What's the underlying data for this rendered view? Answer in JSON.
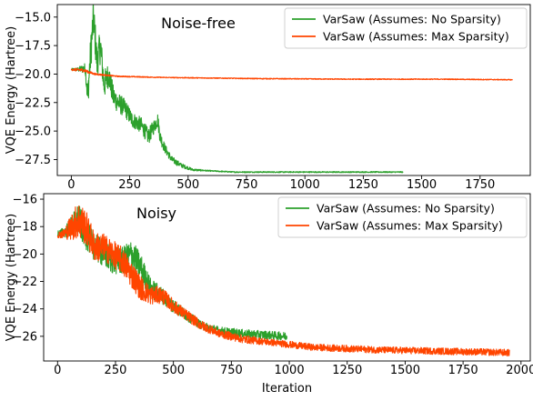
{
  "chart_data": [
    {
      "type": "line",
      "title": "Noise-free",
      "xlabel": "",
      "ylabel": "VQE Energy (Hartree)",
      "xlim": [
        -60,
        1965
      ],
      "ylim": [
        -28.9,
        -13.9
      ],
      "xticks": [
        0,
        250,
        500,
        750,
        1000,
        1250,
        1500,
        1750
      ],
      "yticks": [
        -15.0,
        -17.5,
        -20.0,
        -22.5,
        -25.0,
        -27.5
      ],
      "ytick_labels": [
        "−15.0",
        "−17.5",
        "−20.0",
        "−22.5",
        "−25.0",
        "−27.5"
      ],
      "legend_position": "top-right",
      "series": [
        {
          "name": "VarSaw (Assumes: No Sparsity)",
          "color": "#2ca02c",
          "x": [
            0,
            30,
            60,
            70,
            80,
            95,
            110,
            125,
            140,
            160,
            180,
            200,
            230,
            260,
            300,
            330,
            370,
            380,
            400,
            430,
            470,
            520,
            600,
            700,
            800,
            1000,
            1200,
            1420
          ],
          "y": [
            -19.6,
            -19.6,
            -19.5,
            -22.0,
            -19.0,
            -15.0,
            -19.0,
            -17.5,
            -21.0,
            -20.0,
            -22.0,
            -22.5,
            -23.0,
            -24.0,
            -24.5,
            -25.5,
            -24.0,
            -25.5,
            -26.5,
            -27.5,
            -28.0,
            -28.4,
            -28.5,
            -28.6,
            -28.6,
            -28.6,
            -28.6,
            -28.6
          ],
          "noise": [
            0.1,
            0.2,
            0.5,
            1.2,
            1.6,
            1.8,
            1.5,
            1.5,
            1.3,
            1.1,
            1.0,
            0.9,
            0.8,
            0.7,
            0.7,
            0.7,
            0.6,
            0.6,
            0.4,
            0.3,
            0.2,
            0.1,
            0.05,
            0.05,
            0.05,
            0.05,
            0.05,
            0.05
          ]
        },
        {
          "name": "VarSaw (Assumes: Max Sparsity)",
          "color": "#ff4500",
          "x": [
            0,
            50,
            100,
            200,
            400,
            800,
            1200,
            1600,
            1890
          ],
          "y": [
            -19.6,
            -19.65,
            -20.0,
            -20.2,
            -20.3,
            -20.4,
            -20.45,
            -20.45,
            -20.5
          ],
          "noise": [
            0.1,
            0.15,
            0.08,
            0.05,
            0.04,
            0.04,
            0.04,
            0.04,
            0.04
          ]
        }
      ]
    },
    {
      "type": "line",
      "title": "Noisy",
      "xlabel": "Iteration",
      "ylabel": "VQE Energy (Hartree)",
      "xlim": [
        -60,
        2040
      ],
      "ylim": [
        -27.8,
        -15.6
      ],
      "xticks": [
        0,
        250,
        500,
        750,
        1000,
        1250,
        1500,
        1750,
        2000
      ],
      "yticks": [
        -16,
        -18,
        -20,
        -22,
        -24,
        -26
      ],
      "ytick_labels": [
        "−16",
        "−18",
        "−20",
        "−22",
        "−24",
        "−26"
      ],
      "legend_position": "top-right",
      "series": [
        {
          "name": "VarSaw (Assumes: No Sparsity)",
          "color": "#2ca02c",
          "x": [
            0,
            30,
            60,
            90,
            120,
            160,
            200,
            240,
            280,
            320,
            360,
            400,
            450,
            500,
            560,
            620,
            700,
            800,
            900,
            990
          ],
          "y": [
            -18.5,
            -18.4,
            -18.0,
            -17.5,
            -18.5,
            -19.5,
            -20.0,
            -20.5,
            -20.5,
            -20.0,
            -21.0,
            -22.5,
            -23.0,
            -23.8,
            -24.5,
            -25.2,
            -25.6,
            -25.8,
            -25.9,
            -26.0
          ],
          "noise": [
            0.2,
            0.4,
            0.8,
            1.2,
            1.1,
            1.0,
            1.0,
            1.0,
            1.0,
            1.1,
            1.0,
            0.8,
            0.6,
            0.5,
            0.4,
            0.3,
            0.3,
            0.3,
            0.3,
            0.3
          ]
        },
        {
          "name": "VarSaw (Assumes: Max Sparsity)",
          "color": "#ff4500",
          "x": [
            0,
            30,
            60,
            90,
            120,
            160,
            200,
            240,
            280,
            320,
            360,
            400,
            450,
            500,
            560,
            620,
            700,
            800,
            900,
            1000,
            1100,
            1250,
            1400,
            1550,
            1700,
            1850,
            1950
          ],
          "y": [
            -18.6,
            -18.5,
            -18.0,
            -17.5,
            -18.0,
            -19.5,
            -19.5,
            -20.0,
            -20.5,
            -21.5,
            -22.5,
            -23.0,
            -23.0,
            -23.8,
            -24.5,
            -25.2,
            -25.8,
            -26.2,
            -26.4,
            -26.6,
            -26.8,
            -26.9,
            -27.0,
            -27.05,
            -27.1,
            -27.15,
            -27.2
          ],
          "noise": [
            0.2,
            0.4,
            1.0,
            1.4,
            1.3,
            1.1,
            1.0,
            1.0,
            1.0,
            1.0,
            0.9,
            0.7,
            0.6,
            0.5,
            0.4,
            0.35,
            0.3,
            0.3,
            0.25,
            0.25,
            0.25,
            0.25,
            0.25,
            0.25,
            0.25,
            0.25,
            0.25
          ]
        }
      ]
    }
  ]
}
